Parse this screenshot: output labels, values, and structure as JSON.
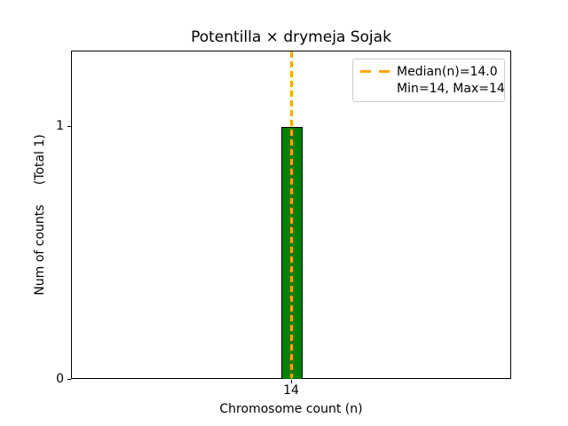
{
  "chart_data": {
    "type": "bar",
    "title": "Potentilla × drymeja Sojak",
    "xlabel": "Chromosome count (n)",
    "ylabel": "Num of counts     (Total 1)",
    "categories": [
      14
    ],
    "values": [
      1
    ],
    "total_counts": 1,
    "x_tick_labels": [
      "14"
    ],
    "y_tick_labels": {
      "zero": "0",
      "one": "1"
    },
    "ylim": [
      0,
      1.3
    ],
    "xlim_note": "single bin centered on 14",
    "grid": false,
    "median": 14.0,
    "min": 14,
    "max": 14,
    "legend": {
      "position": "upper right",
      "entries": [
        {
          "label": "Median(n)=14.0",
          "handle": "orange-dashed-line"
        },
        {
          "label": "Min=14, Max=14",
          "handle": "none"
        }
      ]
    },
    "colors": {
      "bar_fill": "#008000",
      "bar_edge": "#000000",
      "median_line": "#FFA500",
      "axes_edge": "#000000",
      "legend_border": "#cccccc",
      "background": "#ffffff"
    }
  }
}
